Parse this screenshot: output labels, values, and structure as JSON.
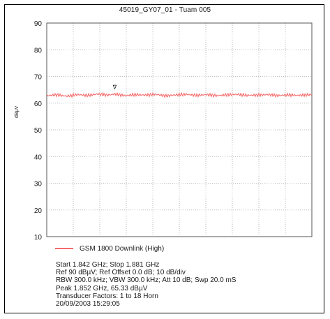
{
  "chart_data": {
    "type": "line",
    "title": "45019_GY07_01 - Tuam 005",
    "xlabel": "",
    "ylabel": "dBµV",
    "ylim": [
      10,
      90
    ],
    "xlim": [
      1.842,
      1.881
    ],
    "x_unit": "GHz",
    "yticks": [
      "90",
      "80",
      "70",
      "60",
      "50",
      "40",
      "30",
      "20",
      "10"
    ],
    "grid": true,
    "legend_position": "bottom",
    "series": [
      {
        "name": "GSM 1800 Downlink (High)",
        "color": "#f46a6a",
        "x": [
          1.842,
          1.8435,
          1.845,
          1.8465,
          1.848,
          1.8495,
          1.851,
          1.852,
          1.8535,
          1.855,
          1.8565,
          1.858,
          1.8595,
          1.861,
          1.8625,
          1.864,
          1.8655,
          1.867,
          1.8685,
          1.87,
          1.8715,
          1.873,
          1.8745,
          1.876,
          1.8775,
          1.879,
          1.881
        ],
        "values": [
          62.8,
          63.1,
          62.6,
          63.2,
          62.9,
          63.4,
          63.0,
          63.4,
          62.8,
          63.2,
          63.0,
          63.3,
          62.7,
          63.1,
          63.3,
          62.9,
          63.2,
          62.8,
          63.1,
          63.3,
          62.9,
          63.0,
          63.2,
          62.8,
          63.1,
          62.9,
          63.2
        ]
      }
    ],
    "marker": {
      "x": 1.852,
      "y": 65.33,
      "symbol": "∇"
    }
  },
  "info_lines": [
    "Start 1.842 GHz; Stop 1.881 GHz",
    "Ref 90 dBµV; Ref Offset 0.0 dB; 10 dB/div",
    "RBW 300.0 kHz; VBW 300.0 kHz; Att 10 dB; Swp 20.0 mS",
    "Peak 1.852 GHz, 65.33 dBµV",
    "Transducer Factors: 1 to 18 Horn",
    "20/09/2003 15:29:05"
  ]
}
